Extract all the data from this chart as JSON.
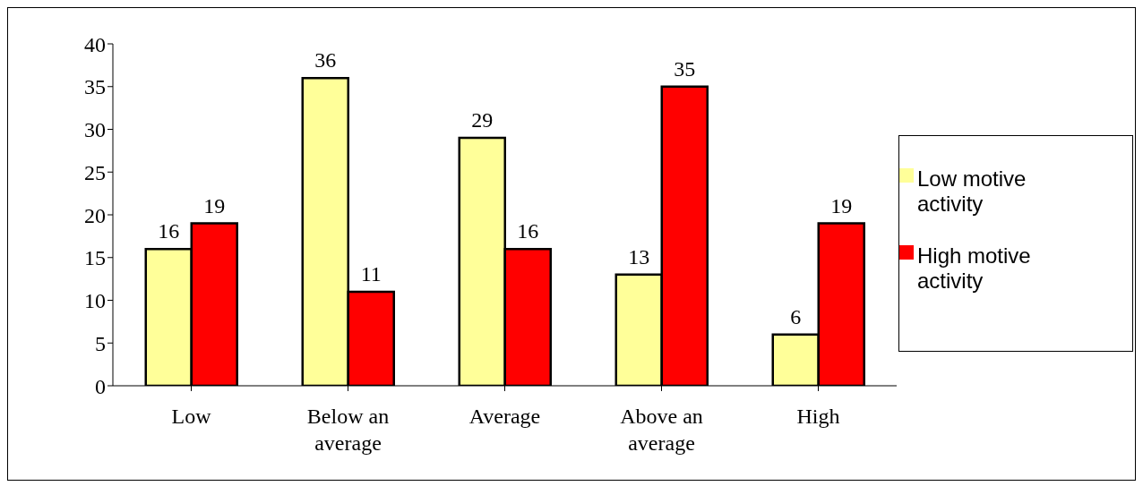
{
  "chart_data": {
    "type": "bar",
    "categories": [
      "Low",
      "Below an average",
      "Average",
      "Above an average",
      "High"
    ],
    "series": [
      {
        "name": "Low motive activity",
        "color": "#ffff99",
        "values": [
          16,
          36,
          29,
          13,
          6
        ]
      },
      {
        "name": "High motive activity",
        "color": "#ff0000",
        "values": [
          19,
          11,
          16,
          35,
          19
        ]
      }
    ],
    "ylim": [
      0,
      40
    ],
    "yticks": [
      0,
      5,
      10,
      15,
      20,
      25,
      30,
      35,
      40
    ],
    "grid": false,
    "legend": "right",
    "data_labels": true
  }
}
